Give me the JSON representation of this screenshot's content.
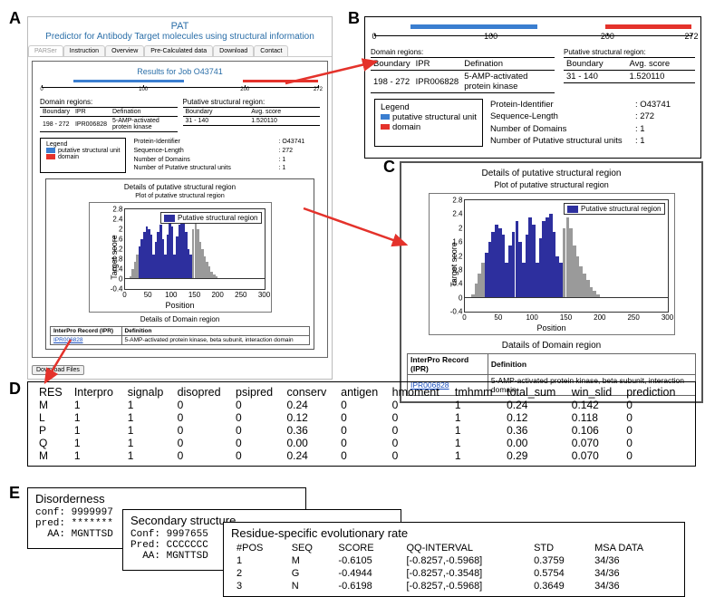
{
  "labels": {
    "A": "A",
    "B": "B",
    "C": "C",
    "D": "D",
    "E": "E"
  },
  "app": {
    "title1": "PAT",
    "title2": "Predictor for Antibody Target molecules using structural information",
    "tabs": [
      "PARSer",
      "Instruction",
      "Overview",
      "Pre-Calculated data",
      "Download",
      "Contact"
    ],
    "results_for": "Results for Job O43741",
    "download_btn": "Download Files"
  },
  "ruler": {
    "min": 0,
    "max": 272,
    "ticks": [
      0,
      100,
      200,
      272
    ],
    "bars": [
      {
        "from": 31,
        "to": 140,
        "color": "#3a7ed0"
      },
      {
        "from": 198,
        "to": 272,
        "color": "#e4322b"
      }
    ]
  },
  "domain_regions": {
    "title": "Domain regions:",
    "headers": [
      "Boundary",
      "IPR",
      "Defination"
    ],
    "row": [
      "198 - 272",
      "IPR006828",
      "5-AMP-activated protein kinase"
    ]
  },
  "putative_region": {
    "title": "Putative structural region:",
    "headers": [
      "Boundary",
      "Avg. score"
    ],
    "row": [
      "31 - 140",
      "1.520110"
    ]
  },
  "legend": {
    "title": "Legend",
    "items": [
      {
        "color": "#3a7ed0",
        "label": "putative structural unit"
      },
      {
        "color": "#e4322b",
        "label": "domain"
      }
    ],
    "meta": [
      {
        "k": "Protein-Identifier",
        "v": "O43741"
      },
      {
        "k": "Sequence-Length",
        "v": "272"
      },
      {
        "k": "Number of Domains",
        "v": "1"
      },
      {
        "k": "Number of Putative structural units",
        "v": "1"
      }
    ]
  },
  "details": {
    "title": "Details of putative structural region",
    "plot_title": "Plot of putative structural region",
    "legend_label": "Putative structural region",
    "legend_color": "#2d2f9e",
    "ylabel": "Target score",
    "xlabel": "Position",
    "ylim": [
      -0.4,
      2.8
    ],
    "yticks": [
      -0.4,
      0,
      0.4,
      0.8,
      1.2,
      1.6,
      2.0,
      2.4,
      2.8
    ],
    "xlim": [
      0,
      300
    ],
    "xticks": [
      0,
      50,
      100,
      150,
      200,
      250,
      300
    ],
    "series": {
      "gray_color": "#9a9a9a",
      "blue_color": "#2d2f9e",
      "gray_values": [
        0.0,
        0.0,
        0.1,
        0.4,
        0.7,
        1.0,
        1.3,
        1.6,
        1.9,
        2.1,
        2.0,
        1.8,
        1.0,
        1.5,
        1.9,
        2.2,
        1.6,
        1.0,
        1.8,
        2.3,
        2.1,
        1.0,
        1.7,
        2.2,
        2.3,
        2.4,
        1.9,
        1.2,
        1.0,
        2.0,
        2.3,
        2.0,
        1.5,
        1.2,
        0.9,
        0.7,
        0.5,
        0.3,
        0.2,
        0.1,
        0.0,
        0.0,
        0.0,
        0.0,
        0.0,
        0.0,
        0.0,
        0.0,
        0.0,
        0.0,
        0.0,
        0.0,
        0.0,
        0.0,
        0.0,
        0.0,
        0.0,
        0.0,
        0.0,
        0.0
      ],
      "blue_mask_from": 6,
      "blue_mask_to": 28
    },
    "domain_title": "Datails of Domain region",
    "domain_title_a": "Details of Domain region",
    "table_headers": [
      "InterPro Record (IPR)",
      "Definition"
    ],
    "table_row": [
      "IPR006828",
      "5-AMP-activated protein kinase, beta subunit, interaction domain"
    ]
  },
  "panelD": {
    "headers": [
      "RES",
      "Interpro",
      "signalp",
      "disopred",
      "psipred",
      "conserv",
      "antigen",
      "hmoment",
      "tmhmm",
      "total_sum",
      "win_slid",
      "prediction"
    ],
    "rows": [
      [
        "M",
        "1",
        "1",
        "0",
        "0",
        "0.24",
        "0",
        "0",
        "1",
        "0.24",
        "0.142",
        "0"
      ],
      [
        "L",
        "1",
        "1",
        "0",
        "0",
        "0.12",
        "0",
        "0",
        "1",
        "0.12",
        "0.118",
        "0"
      ],
      [
        "P",
        "1",
        "1",
        "0",
        "0",
        "0.36",
        "0",
        "0",
        "1",
        "0.36",
        "0.106",
        "0"
      ],
      [
        "Q",
        "1",
        "1",
        "0",
        "0",
        "0.00",
        "0",
        "0",
        "1",
        "0.00",
        "0.070",
        "0"
      ],
      [
        "M",
        "1",
        "1",
        "0",
        "0",
        "0.24",
        "0",
        "0",
        "1",
        "0.29",
        "0.070",
        "0"
      ]
    ]
  },
  "panelE": {
    "win1": {
      "title": "Disorderness",
      "l1": "conf: 9999997",
      "l2": "pred: *******",
      "l3": "  AA: MGNTTSD"
    },
    "win2": {
      "title": "Secondary structure",
      "l1": "Conf: 9997655",
      "l2": "Pred: CCCCCCC",
      "l3": "  AA: MGNTTSD"
    },
    "win3": {
      "title": "Residue-specific evolutionary rate",
      "headers": [
        "#POS",
        "SEQ",
        "SCORE",
        "QQ-INTERVAL",
        "STD",
        "MSA DATA"
      ],
      "rows": [
        [
          "1",
          "M",
          "-0.6105",
          "[-0.8257,-0.5968]",
          "0.3759",
          "34/36"
        ],
        [
          "2",
          "G",
          "-0.4944",
          "[-0.8257,-0.3548]",
          "0.5754",
          "34/36"
        ],
        [
          "3",
          "N",
          "-0.6198",
          "[-0.8257,-0.5968]",
          "0.3649",
          "34/36"
        ]
      ]
    }
  },
  "arrow_color": "#e4322b"
}
